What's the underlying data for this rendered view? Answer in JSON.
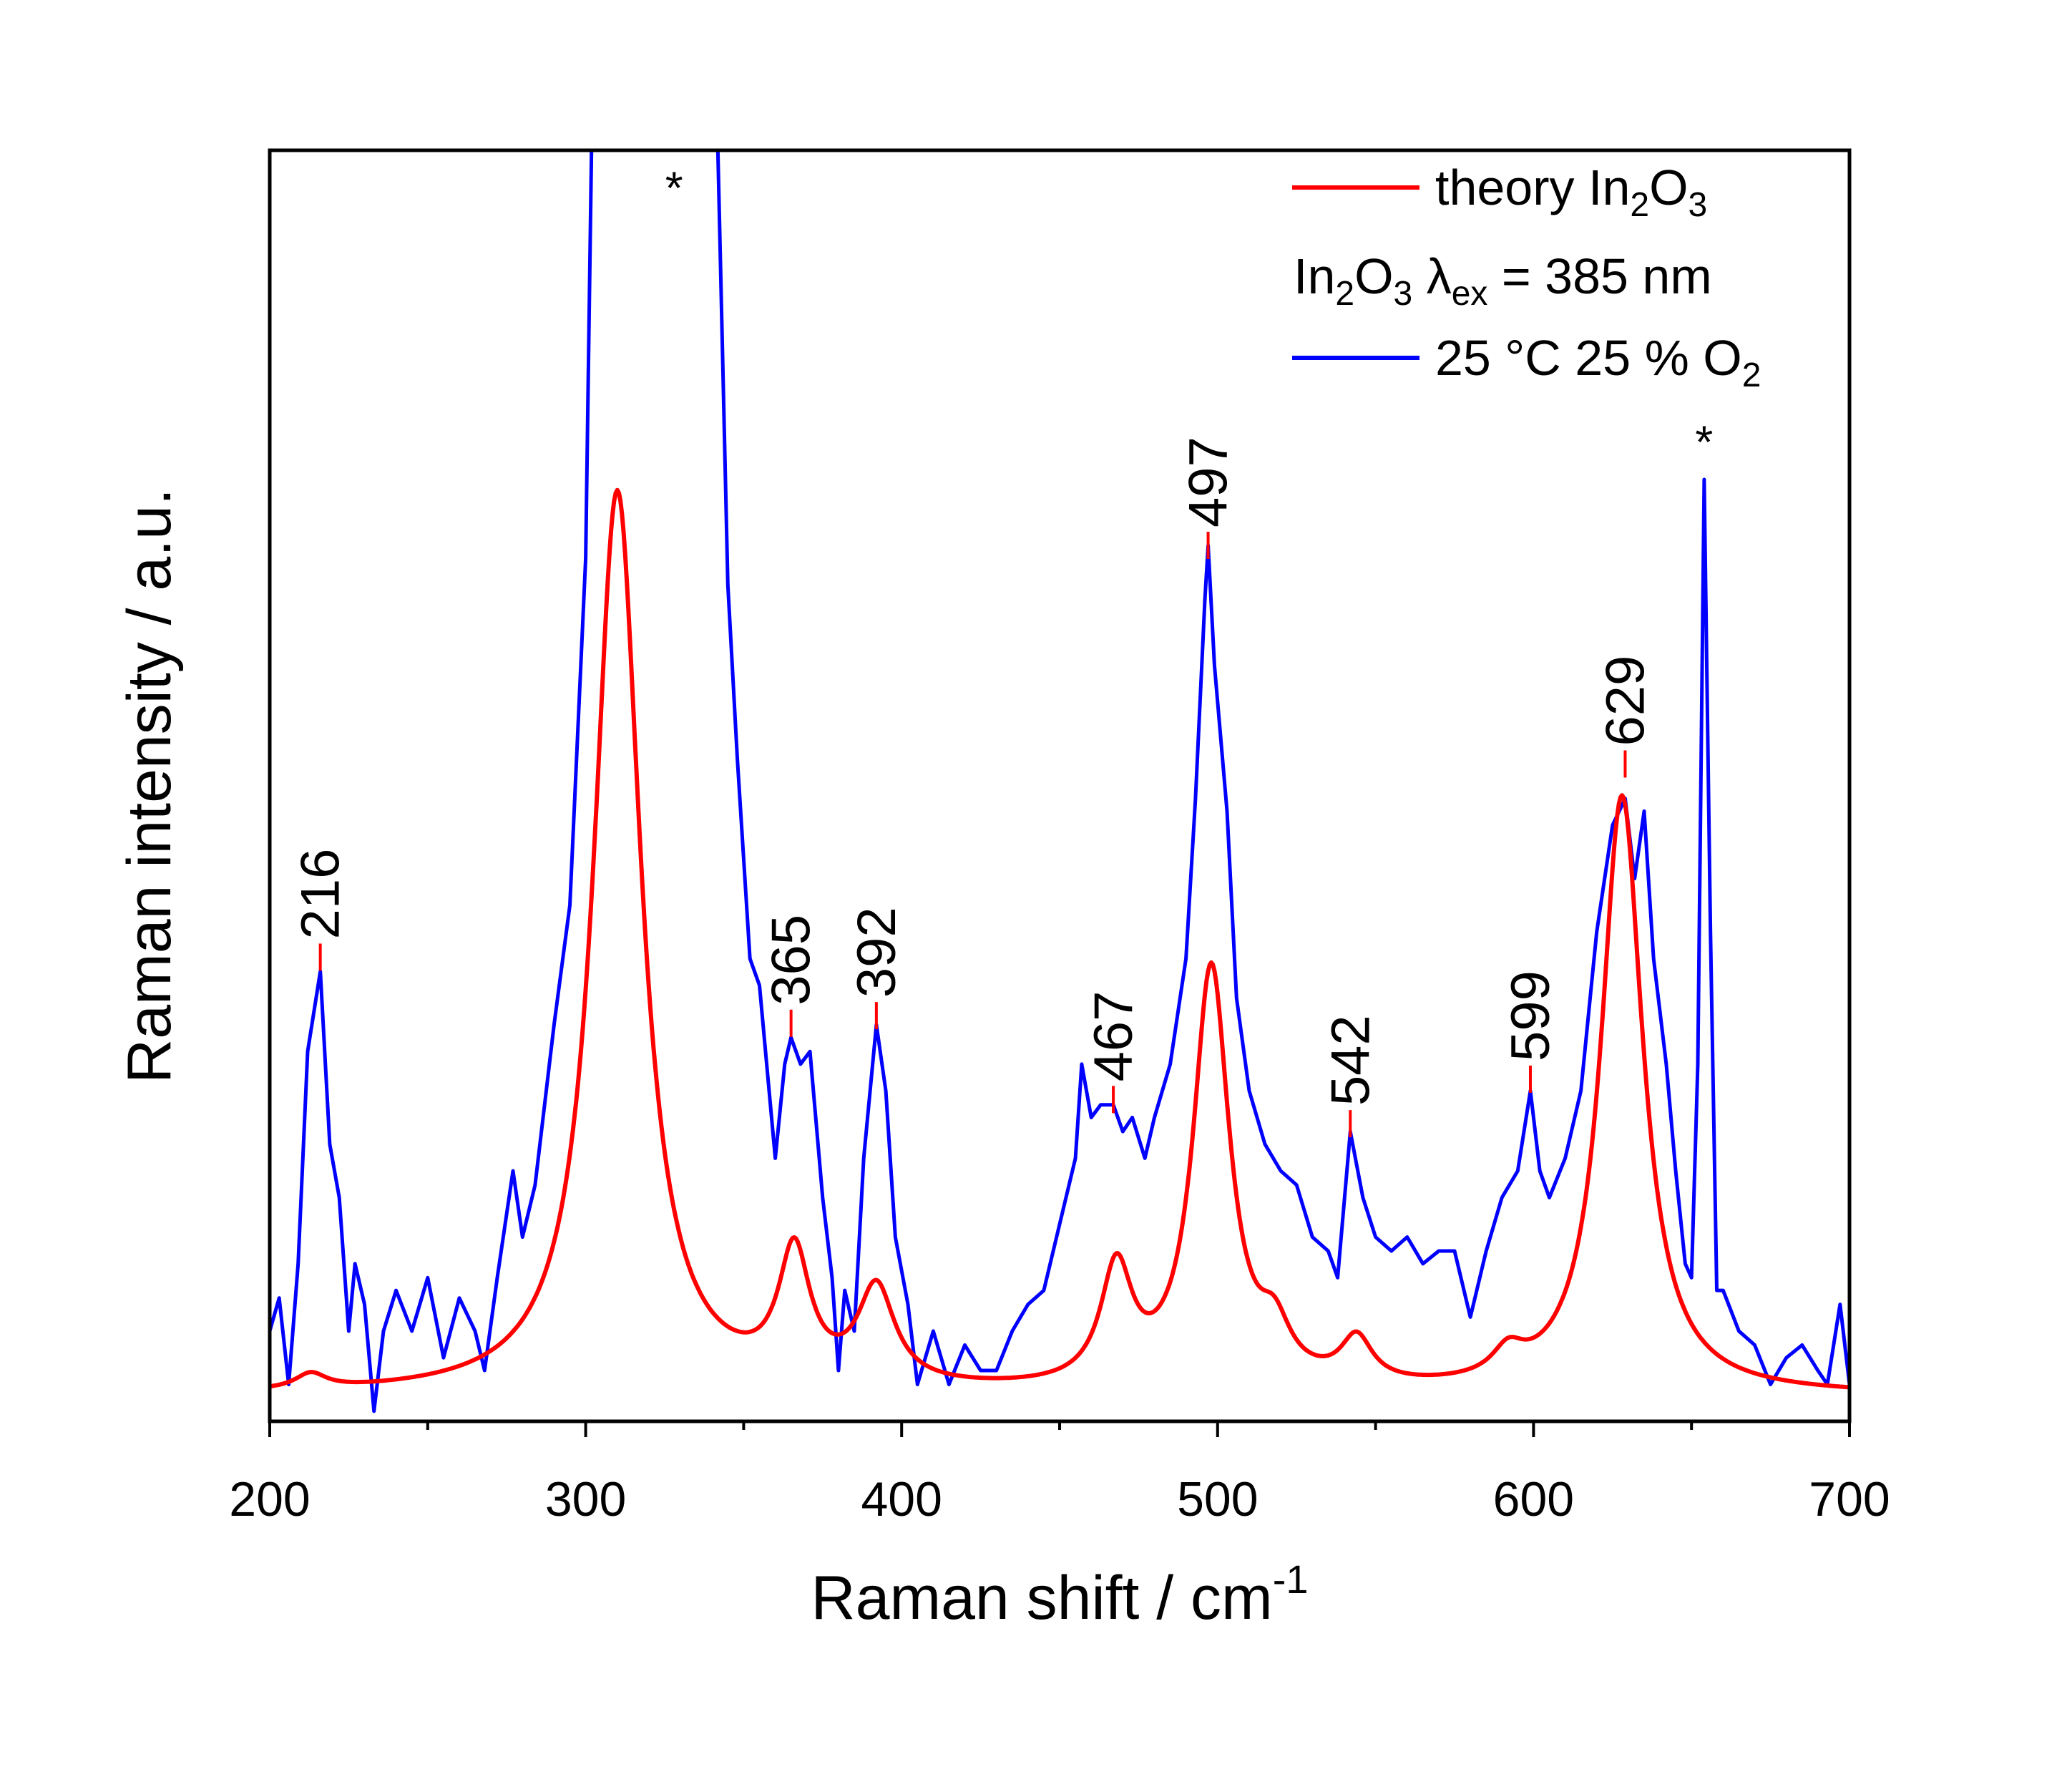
{
  "chart_data": {
    "type": "line",
    "xlabel": "Raman shift / cm",
    "xlabel_sup": "-1",
    "ylabel": "Raman intensity / a.u.",
    "xlim": [
      200,
      700
    ],
    "ylim": [
      0,
      1
    ],
    "x_ticks": [
      "200",
      "300",
      "400",
      "500",
      "600",
      "700"
    ],
    "x_tick_values": [
      200,
      300,
      400,
      500,
      600,
      700
    ],
    "grid": false,
    "legend_placement": "top-right",
    "legend": [
      {
        "parts": [
          [
            "theory In",
            ""
          ],
          [
            "2",
            "sub"
          ],
          [
            "O",
            ""
          ],
          [
            "3",
            "sub"
          ]
        ],
        "color": "#ff0000"
      },
      {
        "parts": [
          [
            "In",
            ""
          ],
          [
            "2",
            "sub"
          ],
          [
            "O",
            ""
          ],
          [
            "3",
            "sub"
          ],
          [
            " λ",
            ""
          ],
          [
            "ex",
            "sub"
          ],
          [
            " = 385 nm",
            ""
          ]
        ],
        "color": null
      },
      {
        "parts": [
          [
            "25 °C 25 % O",
            ""
          ],
          [
            "2",
            "sub"
          ]
        ],
        "color": "#0000ff"
      }
    ],
    "series": [
      {
        "color": "#ff0000",
        "model": "lorentzian-sum",
        "baseline": 0.02,
        "peaks": [
          {
            "center": 213,
            "height": 0.012,
            "width": 6
          },
          {
            "center": 310,
            "height": 0.71,
            "width": 9
          },
          {
            "center": 366,
            "height": 0.1,
            "width": 6
          },
          {
            "center": 392,
            "height": 0.075,
            "width": 7
          },
          {
            "center": 468,
            "height": 0.09,
            "width": 6
          },
          {
            "center": 498,
            "height": 0.33,
            "width": 7
          },
          {
            "center": 518,
            "height": 0.035,
            "width": 6
          },
          {
            "center": 544,
            "height": 0.035,
            "width": 6
          },
          {
            "center": 592,
            "height": 0.02,
            "width": 6
          },
          {
            "center": 628,
            "height": 0.47,
            "width": 8
          }
        ]
      },
      {
        "color": "#0000ff",
        "x": [
          200,
          203,
          206,
          209,
          212,
          216,
          219,
          222,
          225,
          227,
          230,
          233,
          236,
          240,
          245,
          250,
          255,
          260,
          265,
          268,
          272,
          277,
          280,
          284,
          290,
          295,
          300,
          303,
          340,
          345,
          348,
          352,
          355,
          360,
          363,
          365,
          368,
          371,
          375,
          378,
          380,
          382,
          385,
          388,
          392,
          395,
          398,
          402,
          405,
          410,
          415,
          420,
          425,
          430,
          435,
          440,
          445,
          450,
          455,
          457,
          460,
          463,
          467,
          470,
          473,
          477,
          480,
          485,
          490,
          493,
          496,
          497,
          499,
          503,
          506,
          510,
          515,
          520,
          525,
          530,
          535,
          538,
          542,
          546,
          550,
          555,
          560,
          565,
          570,
          575,
          580,
          585,
          590,
          595,
          599,
          602,
          605,
          610,
          615,
          620,
          625,
          629,
          632,
          635,
          638,
          642,
          645,
          648,
          650,
          652,
          654,
          656,
          658,
          660,
          665,
          670,
          675,
          680,
          685,
          690,
          693,
          697,
          700
        ],
        "y": [
          0.071,
          0.097,
          0.029,
          0.124,
          0.291,
          0.354,
          0.218,
          0.176,
          0.071,
          0.124,
          0.092,
          0.008,
          0.071,
          0.103,
          0.071,
          0.113,
          0.05,
          0.097,
          0.071,
          0.04,
          0.113,
          0.197,
          0.145,
          0.186,
          0.312,
          0.406,
          0.679,
          1.2,
          1.2,
          0.658,
          0.521,
          0.364,
          0.343,
          0.207,
          0.281,
          0.302,
          0.281,
          0.291,
          0.176,
          0.113,
          0.04,
          0.103,
          0.071,
          0.207,
          0.312,
          0.26,
          0.145,
          0.092,
          0.029,
          0.071,
          0.029,
          0.06,
          0.04,
          0.04,
          0.071,
          0.092,
          0.103,
          0.155,
          0.207,
          0.281,
          0.239,
          0.249,
          0.249,
          0.228,
          0.239,
          0.207,
          0.239,
          0.281,
          0.364,
          0.49,
          0.647,
          0.689,
          0.595,
          0.48,
          0.333,
          0.26,
          0.218,
          0.197,
          0.186,
          0.145,
          0.134,
          0.113,
          0.228,
          0.176,
          0.145,
          0.134,
          0.145,
          0.124,
          0.134,
          0.134,
          0.082,
          0.134,
          0.176,
          0.197,
          0.26,
          0.197,
          0.176,
          0.207,
          0.26,
          0.385,
          0.469,
          0.49,
          0.427,
          0.48,
          0.364,
          0.281,
          0.197,
          0.124,
          0.113,
          0.281,
          0.741,
          0.385,
          0.103,
          0.103,
          0.071,
          0.06,
          0.029,
          0.05,
          0.06,
          0.04,
          0.029,
          0.092,
          0.029
        ]
      }
    ],
    "peak_labels": [
      {
        "text": "216",
        "x": 216,
        "y": 0.377
      },
      {
        "text": "365",
        "x": 365,
        "y": 0.325
      },
      {
        "text": "392",
        "x": 392,
        "y": 0.331
      },
      {
        "text": "467",
        "x": 467,
        "y": 0.265
      },
      {
        "text": "497",
        "x": 497,
        "y": 0.701
      },
      {
        "text": "542",
        "x": 542,
        "y": 0.246
      },
      {
        "text": "599",
        "x": 599,
        "y": 0.281
      },
      {
        "text": "629",
        "x": 629,
        "y": 0.529
      }
    ],
    "annotations": [
      {
        "text": "*",
        "x": 328,
        "y": 0.975
      },
      {
        "text": "*",
        "x": 654,
        "y": 0.775
      }
    ]
  }
}
